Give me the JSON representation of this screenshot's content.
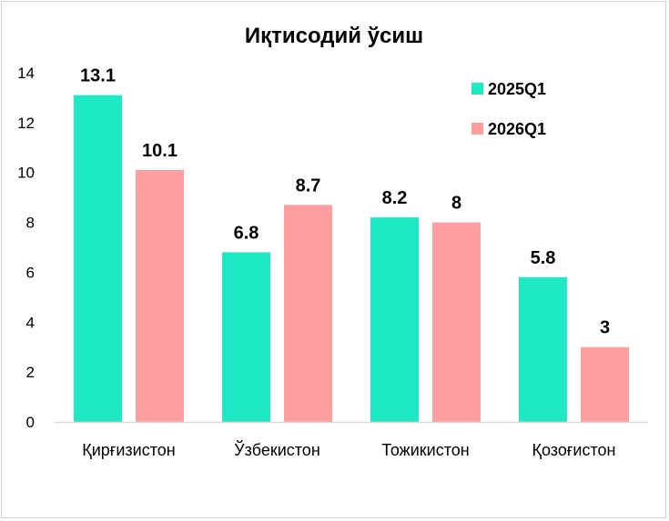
{
  "chart_data": {
    "type": "bar",
    "title": "Иқтисодий ўсиш",
    "categories": [
      "Қирғизистон",
      "Ўзбекистон",
      "Тожикистон",
      "Қозоғистон"
    ],
    "series": [
      {
        "name": "2025Q1",
        "color": "#1de9c4",
        "values": [
          13.1,
          6.8,
          8.2,
          5.8
        ]
      },
      {
        "name": "2026Q1",
        "color": "#ff9e9e",
        "values": [
          10.1,
          8.7,
          8,
          3
        ]
      }
    ],
    "ylim": [
      0,
      14
    ],
    "yticks": [
      0,
      2,
      4,
      6,
      8,
      10,
      12,
      14
    ],
    "grid": false,
    "legend": "top-right",
    "xlabel": "",
    "ylabel": ""
  }
}
